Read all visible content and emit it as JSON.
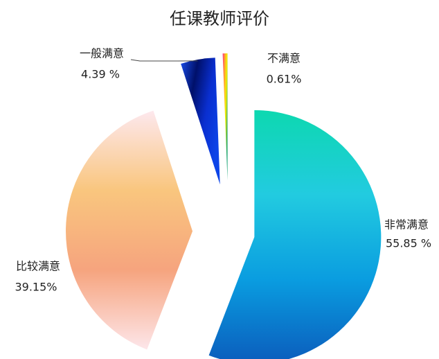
{
  "chart_data": {
    "type": "pie",
    "title": "任课教师评价",
    "categories": [
      "非常满意",
      "比较满意",
      "一般满意",
      "不满意"
    ],
    "values": [
      55.85,
      39.15,
      4.39,
      0.61
    ],
    "value_labels": [
      "55.85 %",
      "39.15%",
      "4.39 %",
      "0.61%"
    ],
    "colors": [
      [
        "#0dd8b0",
        "#22cbe0",
        "#0a9de0",
        "#0b5cbc"
      ],
      [
        "#fde8ee",
        "#f9c67e",
        "#f6a47e",
        "#fde6ea"
      ],
      [
        "#1a4de8",
        "#00106a",
        "#0a2fd0",
        "#0c44e8"
      ],
      [
        "#ff2a8a",
        "#ffa030",
        "#f5f000",
        "#10a070"
      ]
    ]
  }
}
